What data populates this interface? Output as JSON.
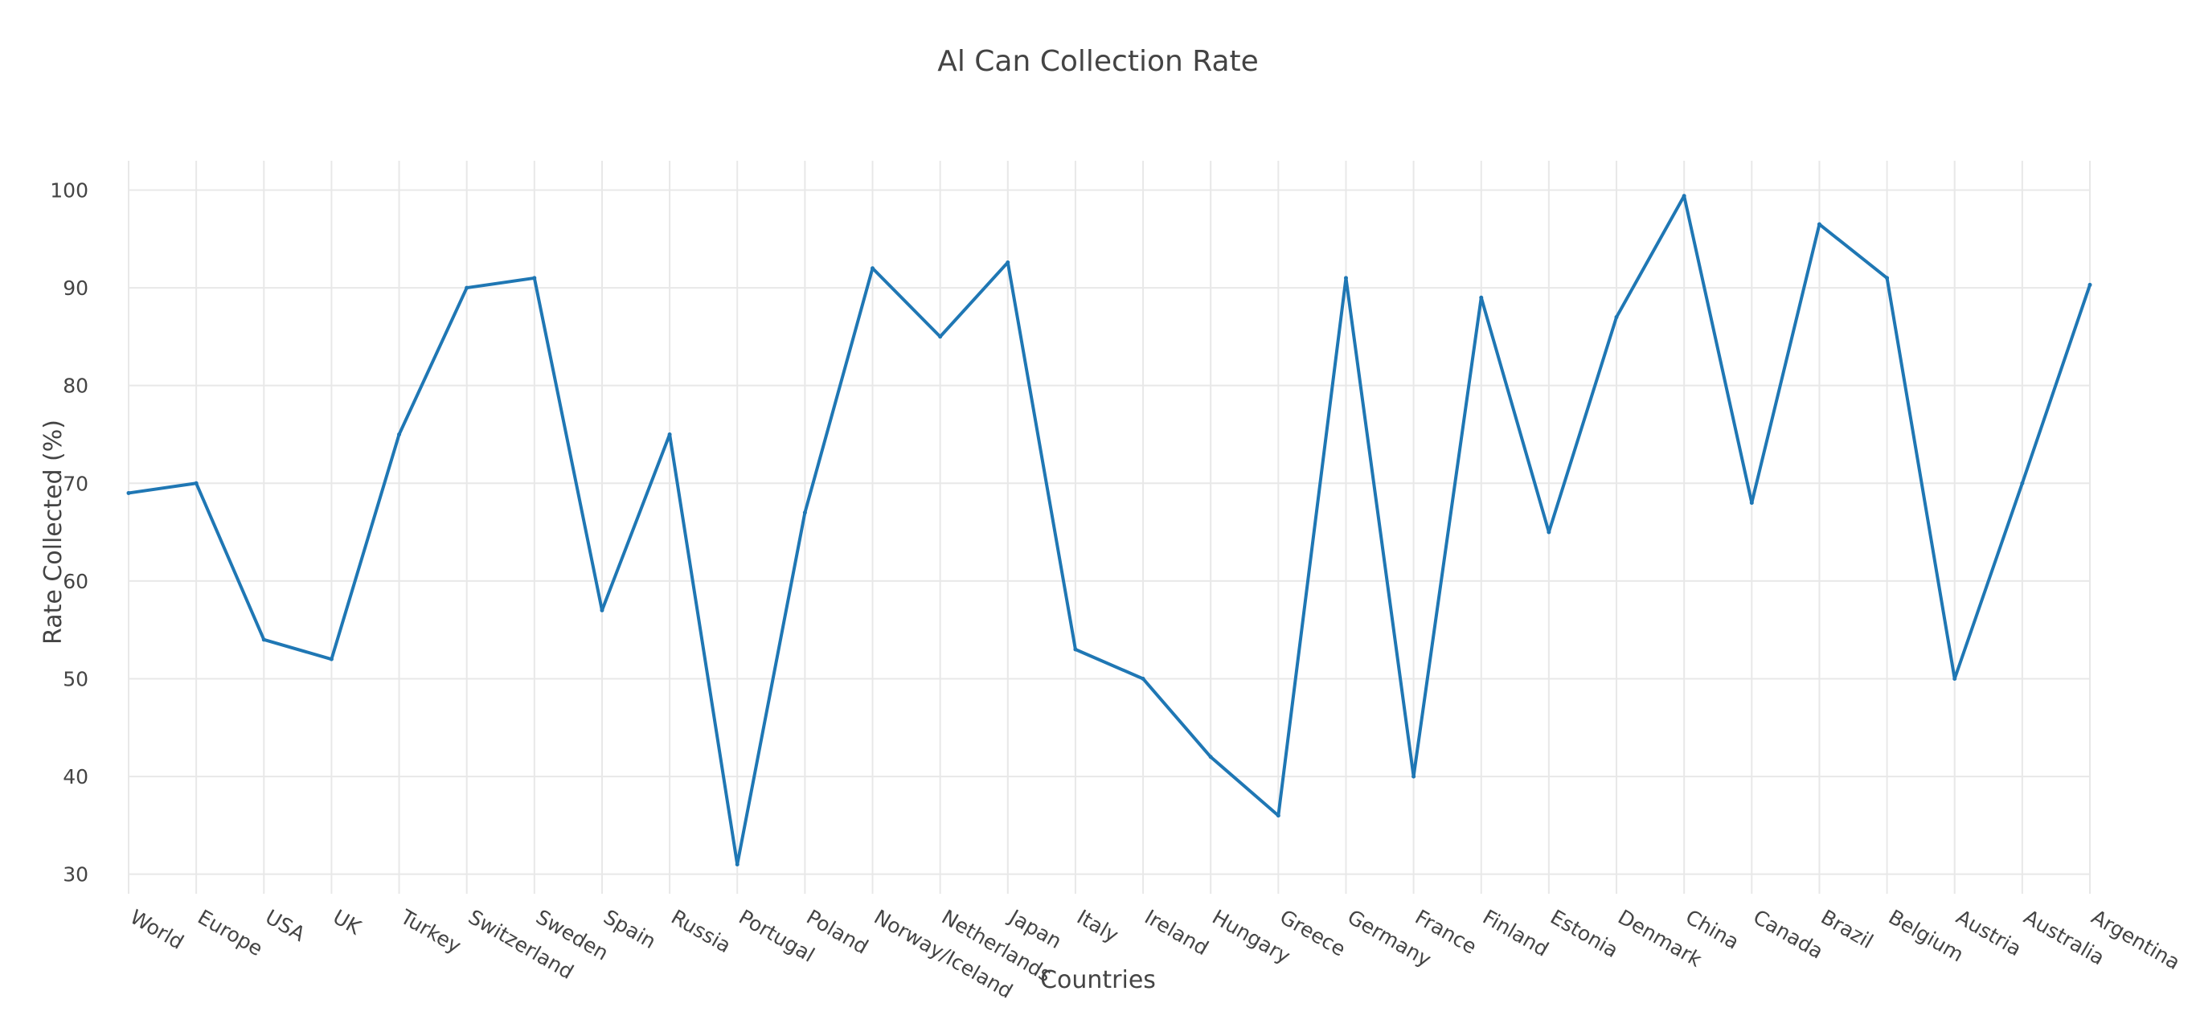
{
  "colors": {
    "line": "#1f77b4",
    "grid": "#e8e8e8",
    "text": "#444444",
    "background": "#ffffff"
  },
  "chart_data": {
    "type": "line",
    "title": "Al Can Collection Rate",
    "xlabel": "Countries",
    "ylabel": "Rate Collected (%)",
    "ylim": [
      28,
      103
    ],
    "yticks": [
      30,
      40,
      50,
      60,
      70,
      80,
      90,
      100
    ],
    "grid": true,
    "categories": [
      "World",
      "Europe",
      "USA",
      "UK",
      "Turkey",
      "Switzerland",
      "Sweden",
      "Spain",
      "Russia",
      "Portugal",
      "Poland",
      "Norway/Iceland",
      "Netherlands",
      "Japan",
      "Italy",
      "Ireland",
      "Hungary",
      "Greece",
      "Germany",
      "France",
      "Finland",
      "Estonia",
      "Denmark",
      "China",
      "Canada",
      "Brazil",
      "Belgium",
      "Austria",
      "Australia",
      "Argentina"
    ],
    "series": [
      {
        "values": [
          69,
          70,
          54,
          52,
          75,
          90,
          91,
          57,
          75,
          31,
          67,
          92,
          85,
          92.6,
          53,
          50,
          42,
          36,
          91,
          40,
          89,
          65,
          87,
          99.4,
          68,
          96.5,
          91,
          50,
          70,
          90.3
        ]
      }
    ]
  }
}
